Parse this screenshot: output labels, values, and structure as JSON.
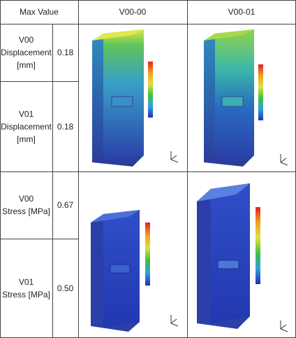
{
  "header": {
    "max_value": "Max Value",
    "col1": "V00-00",
    "col2": "V00-01"
  },
  "rows": [
    {
      "label": "V00\nDisplacement\n[mm]",
      "value": "0.18"
    },
    {
      "label": "V01\nDisplacement\n[mm]",
      "value": "0.18"
    },
    {
      "label": "V00\nStress [MPa]",
      "value": "0.67"
    },
    {
      "label": "V01\nStress [MPa]",
      "value": "0.50"
    }
  ]
}
